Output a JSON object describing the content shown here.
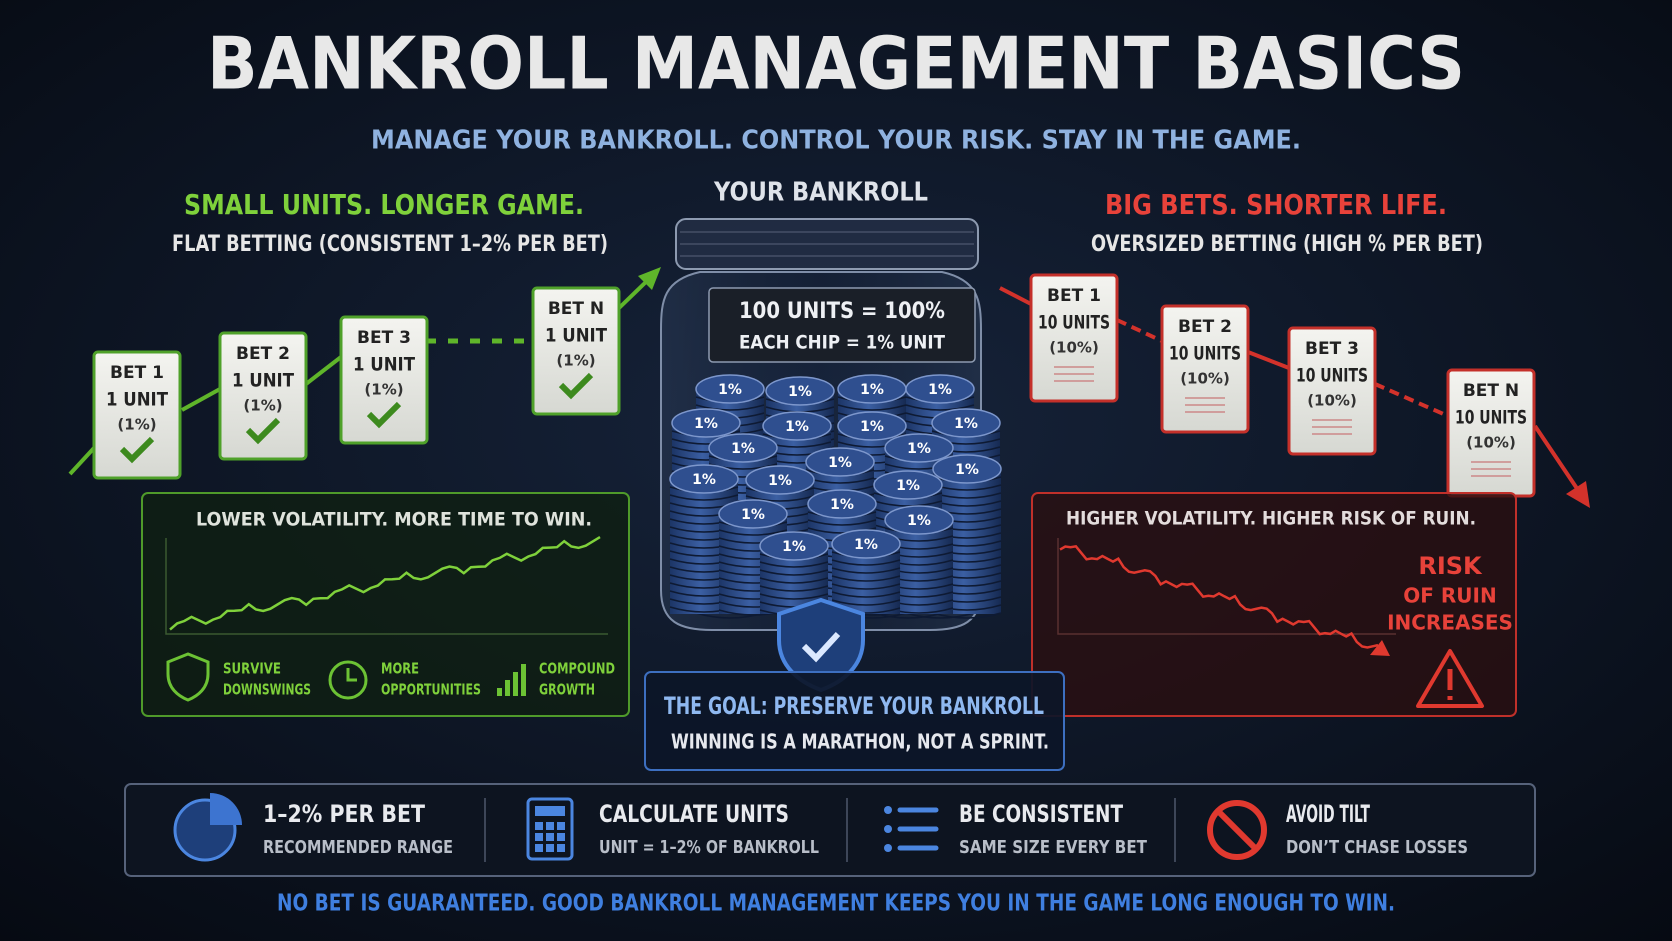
{
  "header": {
    "title": "BANKROLL MANAGEMENT BASICS",
    "subtitle": "MANAGE YOUR BANKROLL. CONTROL YOUR RISK. STAY IN THE GAME."
  },
  "left": {
    "heading": "SMALL UNITS. LONGER GAME.",
    "subheading": "FLAT BETTING (CONSISTENT 1–2% PER BET)",
    "bets": [
      {
        "label": "BET 1",
        "units": "1 UNIT",
        "pct": "(1%)"
      },
      {
        "label": "BET 2",
        "units": "1 UNIT",
        "pct": "(1%)"
      },
      {
        "label": "BET 3",
        "units": "1 UNIT",
        "pct": "(1%)"
      },
      {
        "label": "BET N",
        "units": "1 UNIT",
        "pct": "(1%)"
      }
    ],
    "panel_title": "LOWER VOLATILITY. MORE TIME TO WIN.",
    "benefits": [
      {
        "lines": [
          "SURVIVE",
          "DOWNSWINGS"
        ]
      },
      {
        "lines": [
          "MORE",
          "OPPORTUNITIES"
        ]
      },
      {
        "lines": [
          "COMPOUND",
          "GROWTH"
        ]
      }
    ]
  },
  "jar": {
    "title": "YOUR BANKROLL",
    "label_1": "100 UNITS = 100%",
    "label_2": "EACH CHIP = 1% UNIT",
    "chip": "1%"
  },
  "goal": {
    "title": "THE GOAL: PRESERVE YOUR BANKROLL",
    "text": "WINNING IS A MARATHON, NOT A SPRINT."
  },
  "right": {
    "heading": "BIG BETS. SHORTER LIFE.",
    "subheading": "OVERSIZED BETTING (HIGH % PER BET)",
    "bets": [
      {
        "label": "BET 1",
        "units": "10 UNITS",
        "pct": "(10%)"
      },
      {
        "label": "BET 2",
        "units": "10 UNITS",
        "pct": "(10%)"
      },
      {
        "label": "BET 3",
        "units": "10 UNITS",
        "pct": "(10%)"
      },
      {
        "label": "BET N",
        "units": "10 UNITS",
        "pct": "(10%)"
      }
    ],
    "panel_title": "HIGHER VOLATILITY. HIGHER RISK OF RUIN.",
    "risk": [
      "RISK",
      "OF RUIN",
      "INCREASES"
    ]
  },
  "tips": [
    {
      "title": "1–2% PER BET",
      "text": "RECOMMENDED RANGE"
    },
    {
      "title": "CALCULATE UNITS",
      "text": "UNIT = 1–2% OF BANKROLL"
    },
    {
      "title": "BE CONSISTENT",
      "text": "SAME SIZE EVERY BET"
    },
    {
      "title": "AVOID TILT",
      "text": "DON’T CHASE LOSSES"
    }
  ],
  "footer": "NO BET IS GUARANTEED. GOOD BANKROLL MANAGEMENT KEEPS YOU IN THE GAME LONG ENOUGH TO WIN."
}
